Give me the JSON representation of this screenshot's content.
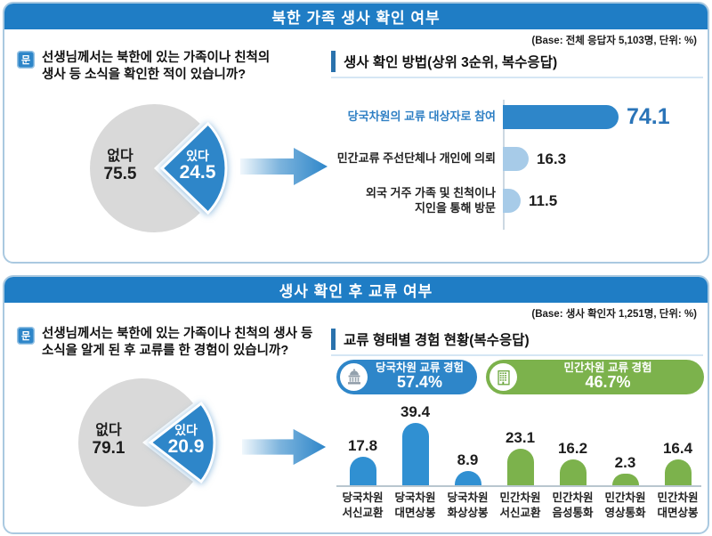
{
  "panels": [
    {
      "title": "북한 가족 생사 확인 여부",
      "base_note": "(Base: 전체 응답자 5,103명, 단위: %)",
      "question_icon": "문",
      "question": "선생님께서는 북한에 있는 가족이나 친척의\n생사 등 소식을 확인한 적이 있습니까?"
    },
    {
      "title": "생사 확인 후 교류 여부",
      "base_note": "(Base: 생사 확인자 1,251명, 단위: %)",
      "question_icon": "문",
      "question": "선생님께서는 북한에 있는 가족이나 친척의 생사 등\n소식을 알게 된 후 교류를 한 경험이 있습니까?"
    }
  ],
  "colors": {
    "header_blue": "#1f7dc5",
    "accent_blue": "#2e86c9",
    "light_blue": "#a7cbe8",
    "value_blue": "#2a74b8",
    "green": "#7cb24c",
    "pie_gray": "#d9d9d9",
    "panel_border": "#aac9e0"
  },
  "chart_data": [
    {
      "type": "pie",
      "title": "북한 가족 생사 확인 여부",
      "labels": [
        "없다",
        "있다"
      ],
      "values": [
        75.5,
        24.5
      ],
      "colors": [
        "#d9d9d9",
        "#2e86c9"
      ],
      "exploded_label": "있다",
      "legend_position": "none"
    },
    {
      "type": "bar",
      "orientation": "horizontal",
      "title": "생사 확인 방법(상위 3순위, 복수응답)",
      "categories": [
        "당국차원의 교류 대상자로 참여",
        "민간교류 주선단체나 개인에 의뢰",
        "외국 거주 가족 및 친척이나\n지인을 통해 방문"
      ],
      "values": [
        74.1,
        16.3,
        11.5
      ],
      "emphasis_index": 0,
      "xlim": [
        0,
        80
      ],
      "grid": false
    },
    {
      "type": "pie",
      "title": "생사 확인 후 교류 여부",
      "labels": [
        "없다",
        "있다"
      ],
      "values": [
        79.1,
        20.9
      ],
      "colors": [
        "#d9d9d9",
        "#2e86c9"
      ],
      "exploded_label": "있다",
      "legend_position": "none"
    },
    {
      "type": "bar",
      "orientation": "vertical",
      "title": "교류 형태별 경험 현황(복수응답)",
      "categories": [
        "당국차원\n서신교환",
        "당국차원\n대면상봉",
        "당국차원\n화상상봉",
        "민간차원\n서신교환",
        "민간차원\n음성통화",
        "민간차원\n영상통화",
        "민간차원\n대면상봉"
      ],
      "values": [
        17.8,
        39.4,
        8.9,
        23.1,
        16.2,
        2.3,
        16.4
      ],
      "groups": [
        "gov",
        "gov",
        "gov",
        "civil",
        "civil",
        "civil",
        "civil"
      ],
      "group_colors": {
        "gov": "#3090d2",
        "civil": "#7cb24c"
      },
      "legend": [
        {
          "label": "당국차원 교류 경험",
          "value": "57.4%",
          "color": "#2e86c9",
          "icon": "government-building"
        },
        {
          "label": "민간차원 교류 경험",
          "value": "46.7%",
          "color": "#7cb24c",
          "icon": "apartment-building"
        }
      ],
      "ylim": [
        0,
        45
      ],
      "grid": false
    }
  ]
}
